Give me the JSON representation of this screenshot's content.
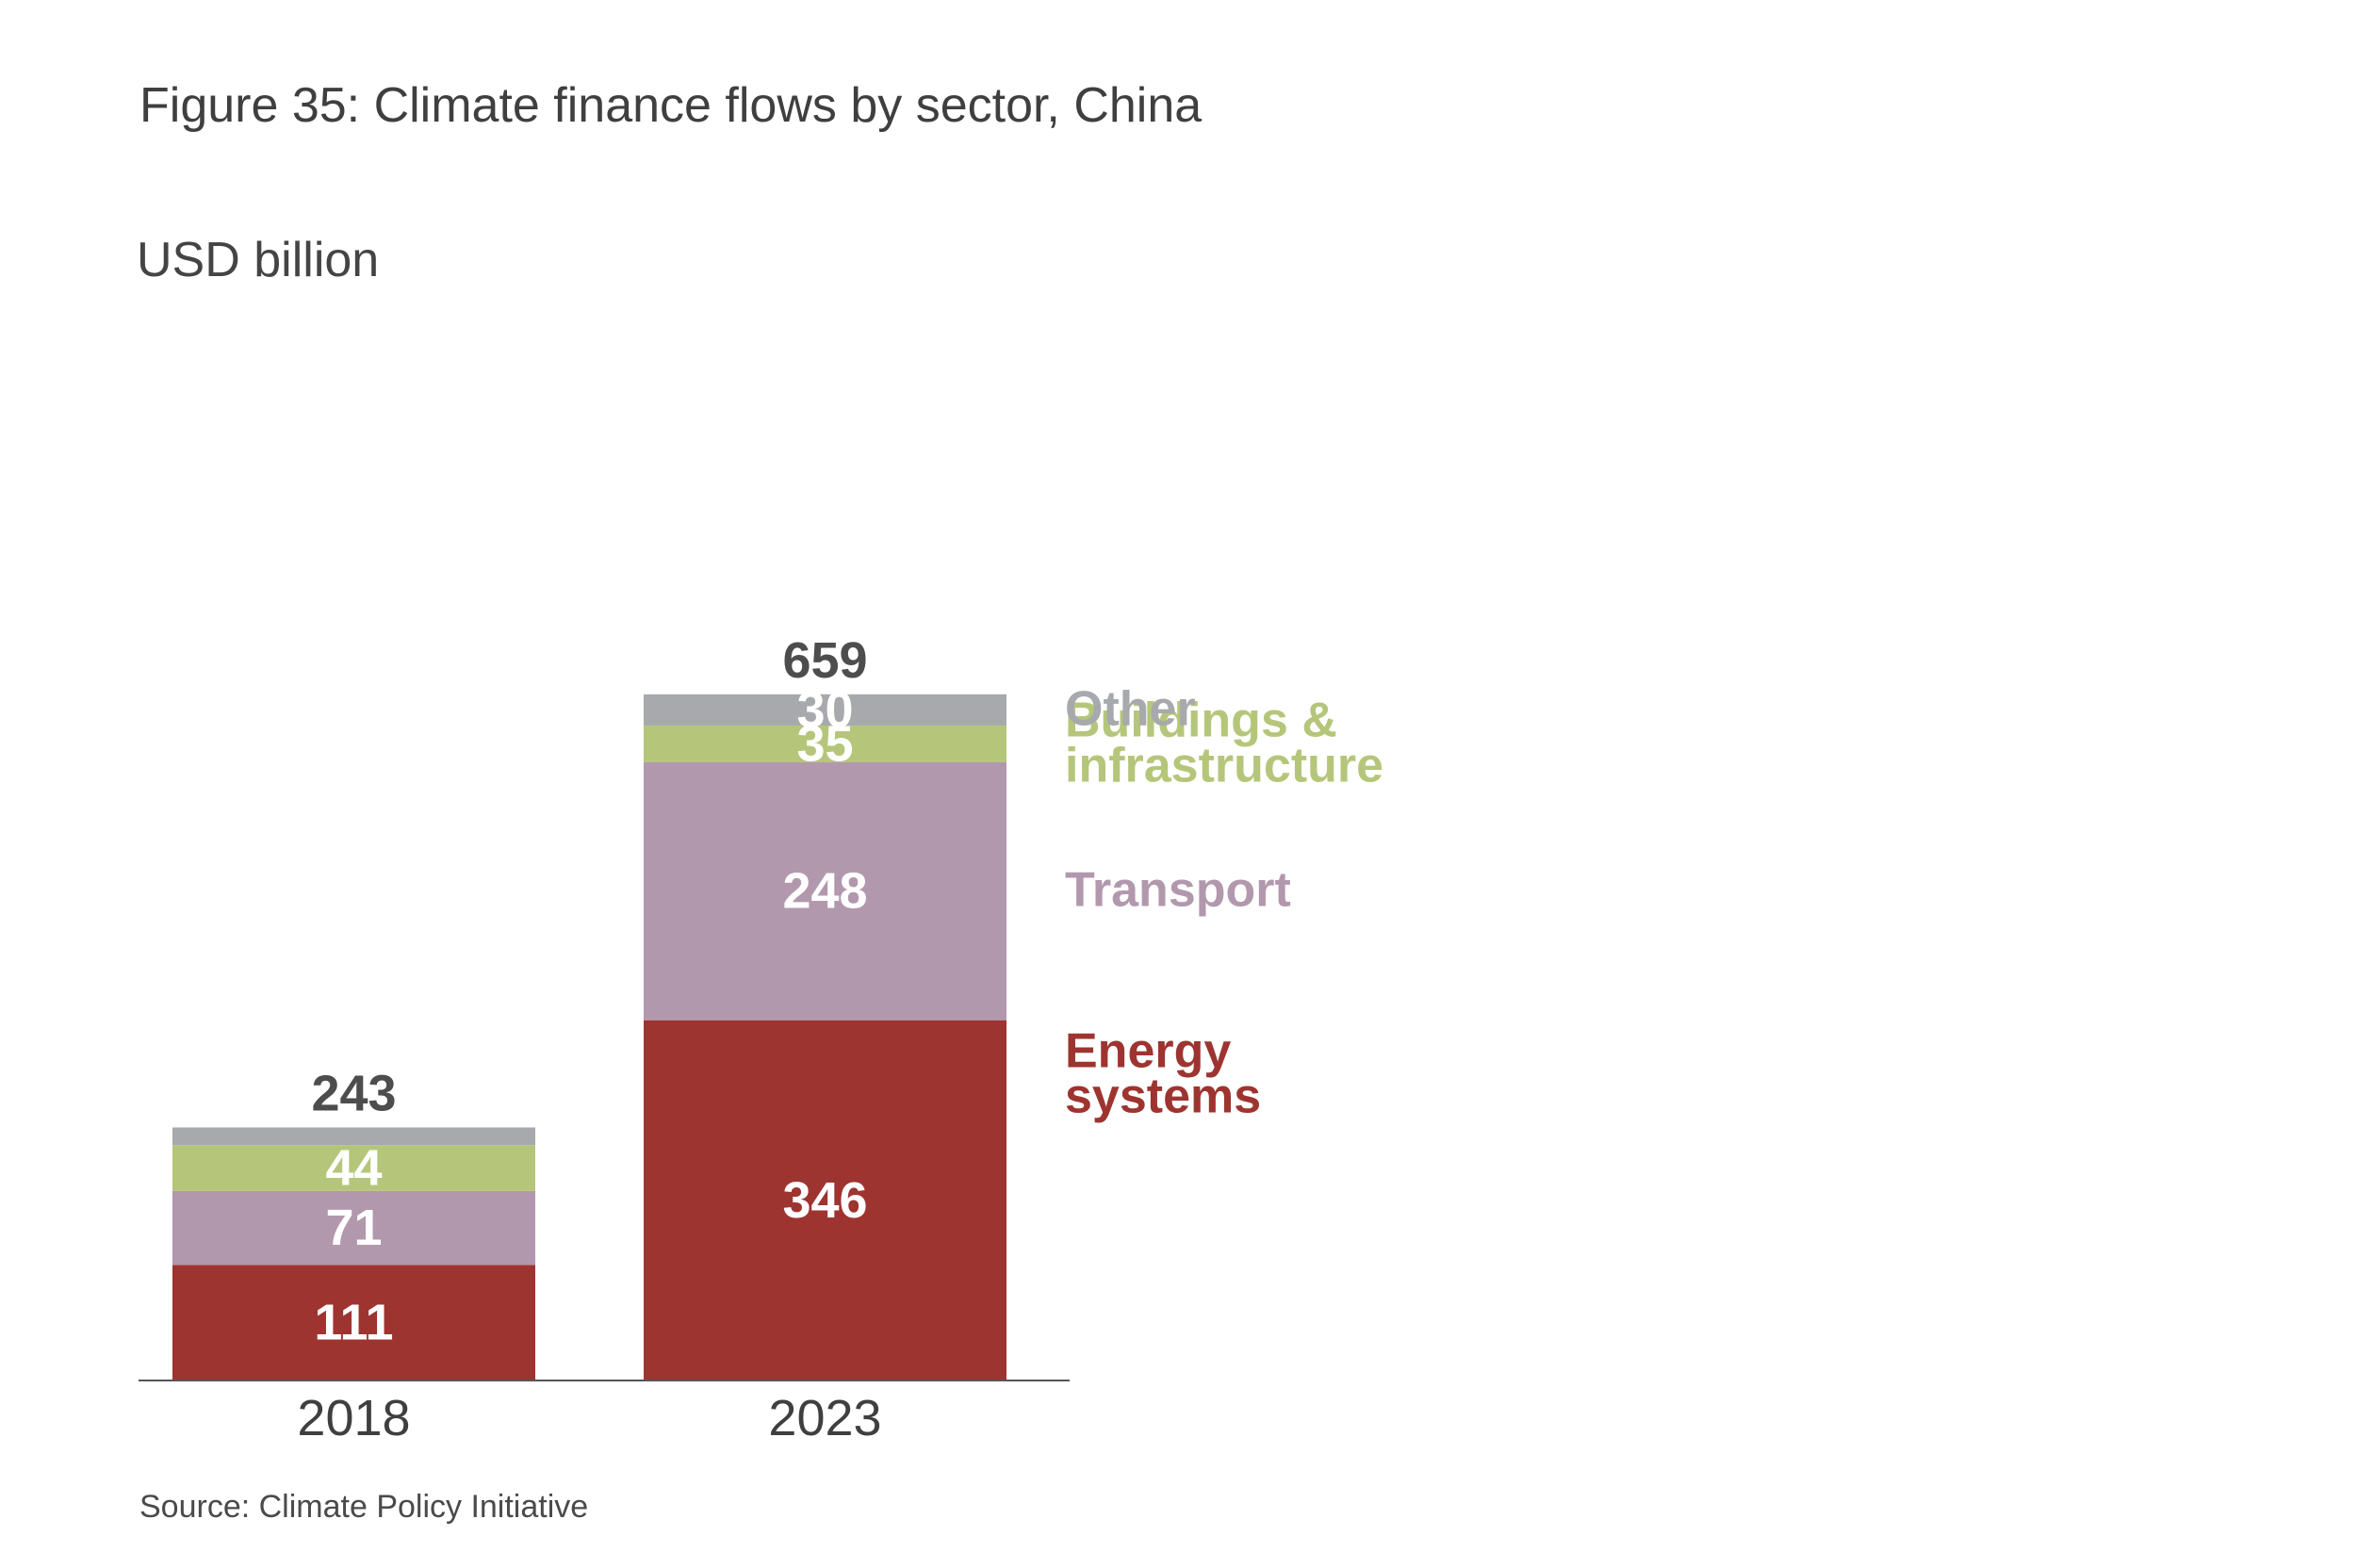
{
  "title": "Figure 35: Climate finance flows by sector, China",
  "source": "Source: Climate Policy Initiative",
  "chart_data": {
    "type": "bar",
    "stacked": true,
    "unit_label": "USD billion",
    "categories": [
      "2018",
      "2023"
    ],
    "totals": [
      243,
      659
    ],
    "series": [
      {
        "name": "Energy systems",
        "legend_lines": [
          "Energy",
          "systems"
        ],
        "color": "#9e3430",
        "values": [
          111,
          346
        ],
        "labels": [
          "111",
          "346"
        ]
      },
      {
        "name": "Transport",
        "legend_lines": [
          "Transport"
        ],
        "color": "#b298ad",
        "values": [
          71,
          248
        ],
        "labels": [
          "71",
          "248"
        ]
      },
      {
        "name": "Buildings & infrastructure",
        "legend_lines": [
          "Buildings &",
          "infrastructure"
        ],
        "color": "#b5c67a",
        "values": [
          44,
          35
        ],
        "labels": [
          "44",
          "35"
        ]
      },
      {
        "name": "Other",
        "legend_lines": [
          "Other"
        ],
        "color": "#a7a9ac",
        "values": [
          17,
          30
        ],
        "labels": [
          "",
          "30"
        ]
      }
    ],
    "total_label_color": "#4d4d4d",
    "segment_label_color": "#ffffff",
    "axis_color": "#555555",
    "legend_placement": "right",
    "grid": false
  }
}
